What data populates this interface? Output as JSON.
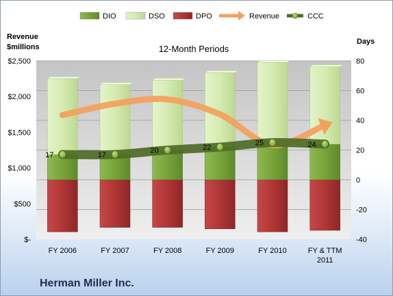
{
  "company": "Herman Miller Inc.",
  "chart_data": {
    "type": "bar",
    "title": "12-Month Periods",
    "left_axis_label": [
      "Revenue",
      "$millions"
    ],
    "right_axis_label": "Days",
    "categories": [
      [
        "FY 2006"
      ],
      [
        "FY 2007"
      ],
      [
        "FY 2008"
      ],
      [
        "FY 2009"
      ],
      [
        "FY 2010"
      ],
      [
        "FY & TTM",
        "2011"
      ]
    ],
    "left_axis": {
      "min": 0,
      "max": 2500,
      "ticks": [
        "$-",
        "$500",
        "$1,000",
        "$1,500",
        "$2,000",
        "$2,500"
      ]
    },
    "right_axis": {
      "min": -40,
      "max": 80,
      "ticks": [
        "-40",
        "-20",
        "0",
        "20",
        "40",
        "60",
        "80"
      ]
    },
    "legend": {
      "position": "top",
      "entries": [
        "DIO",
        "DSO",
        "DPO",
        "Revenue",
        "CCC"
      ]
    },
    "grid": "horizontal",
    "series": [
      {
        "name": "DIO",
        "axis": "right",
        "color": "#77a33c",
        "values": [
          17,
          17,
          20,
          22,
          25,
          24
        ]
      },
      {
        "name": "DSO",
        "axis": "right",
        "color": "#d9edb6",
        "values": [
          51,
          47,
          47,
          50,
          54,
          52
        ]
      },
      {
        "name": "DPO",
        "axis": "right",
        "color": "#b83737",
        "values": [
          -35,
          -32,
          -32,
          -33,
          -35,
          -34
        ]
      },
      {
        "name": "Revenue",
        "axis": "left",
        "color": "#f4a15b",
        "values": [
          1740,
          1900,
          1960,
          1750,
          1320,
          1600
        ]
      },
      {
        "name": "CCC",
        "axis": "right",
        "color": "#4e6b26",
        "values": [
          17,
          17,
          20,
          22,
          25,
          24
        ],
        "labels": [
          "17",
          "17",
          "20",
          "22",
          "25",
          "24"
        ]
      }
    ]
  }
}
